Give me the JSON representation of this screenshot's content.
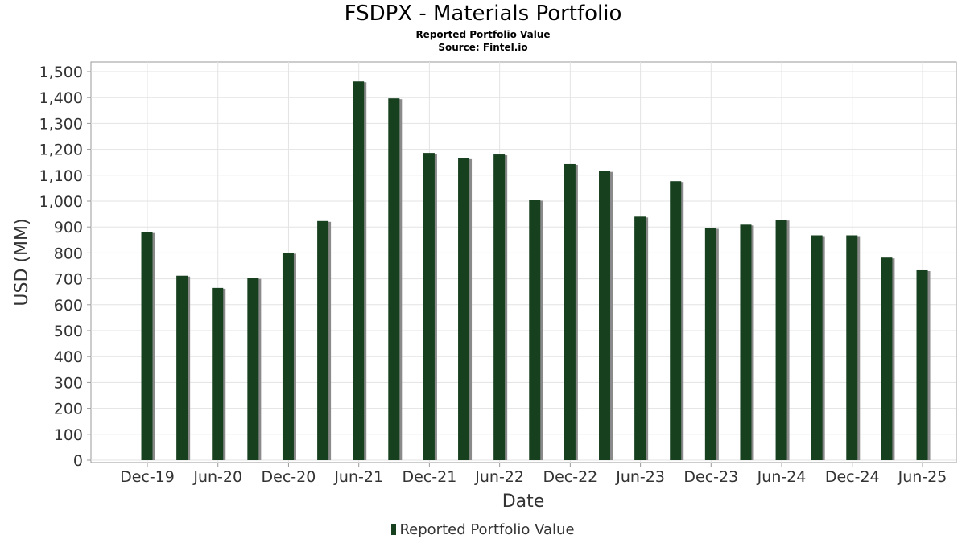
{
  "chart_data": {
    "type": "bar",
    "title": "FSDPX - Materials Portfolio",
    "subtitle": "Reported Portfolio Value",
    "source": "Source: Fintel.io",
    "xlabel": "Date",
    "ylabel": "USD (MM)",
    "ylim": [
      0,
      1550
    ],
    "yticks": [
      0,
      100,
      200,
      300,
      400,
      500,
      600,
      700,
      800,
      900,
      1000,
      1100,
      1200,
      1300,
      1400,
      1500
    ],
    "xtick_labels": [
      "Dec-19",
      "Jun-20",
      "Dec-20",
      "Jun-21",
      "Dec-21",
      "Jun-22",
      "Dec-22",
      "Jun-23",
      "Dec-23",
      "Jun-24",
      "Dec-24",
      "Jun-25"
    ],
    "grid": true,
    "legend_position": "bottom",
    "series": [
      {
        "name": "Reported Portfolio Value",
        "color": "#17401f",
        "x": [
          "2019-11-30",
          "2020-02-29",
          "2020-05-31",
          "2020-08-31",
          "2020-11-30",
          "2021-02-28",
          "2021-05-31",
          "2021-08-31",
          "2021-11-30",
          "2022-02-28",
          "2022-05-31",
          "2022-08-31",
          "2022-11-30",
          "2023-02-28",
          "2023-05-31",
          "2023-08-31",
          "2023-11-30",
          "2024-02-29",
          "2024-05-31",
          "2024-08-31",
          "2024-11-30",
          "2025-02-28",
          "2025-05-31"
        ],
        "values": [
          880,
          712,
          665,
          703,
          800,
          923,
          1462,
          1397,
          1186,
          1165,
          1180,
          1005,
          1143,
          1116,
          940,
          1077,
          896,
          909,
          928,
          868,
          868,
          782,
          733
        ]
      }
    ]
  },
  "legend": {
    "label": "Reported Portfolio Value"
  }
}
